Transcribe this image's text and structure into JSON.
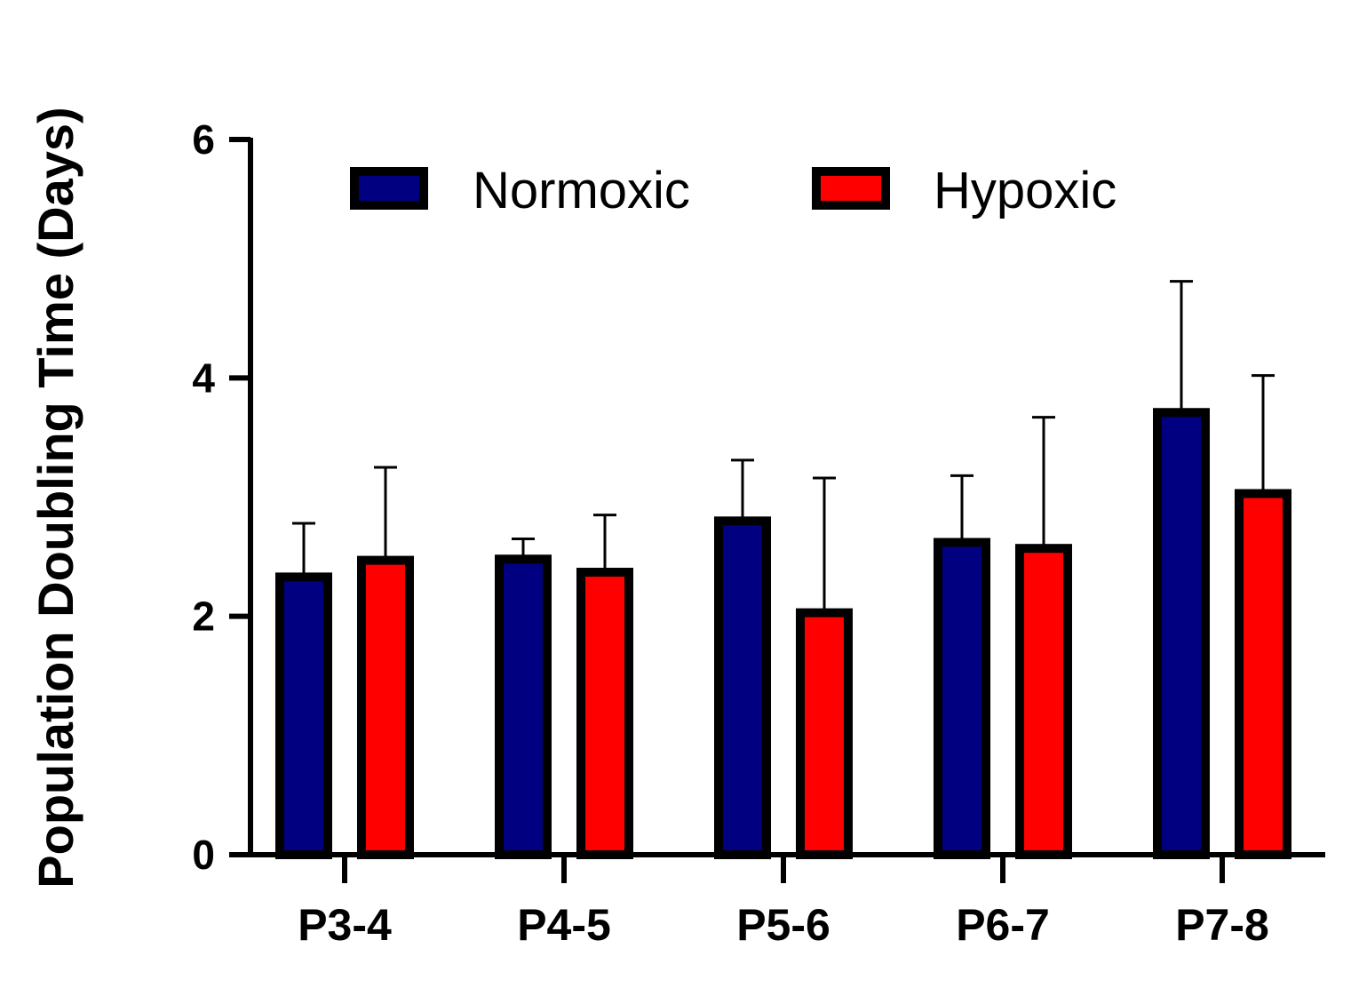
{
  "chart_data": {
    "type": "bar",
    "title": "",
    "xlabel": "",
    "ylabel": "Population Doubling Time (Days)",
    "ylim": [
      0,
      6
    ],
    "yticks": [
      0,
      2,
      4,
      6
    ],
    "categories": [
      "P3-4",
      "P4-5",
      "P5-6",
      "P6-7",
      "P7-8"
    ],
    "series": [
      {
        "name": "Normoxic",
        "color": "#000080",
        "values": [
          2.33,
          2.48,
          2.8,
          2.62,
          3.71
        ],
        "errors": [
          0.45,
          0.17,
          0.51,
          0.56,
          1.1
        ]
      },
      {
        "name": "Hypoxic",
        "color": "#ff0000",
        "values": [
          2.47,
          2.37,
          2.03,
          2.57,
          3.03
        ],
        "errors": [
          0.78,
          0.48,
          1.13,
          1.1,
          0.99
        ]
      }
    ],
    "legend": "top"
  }
}
